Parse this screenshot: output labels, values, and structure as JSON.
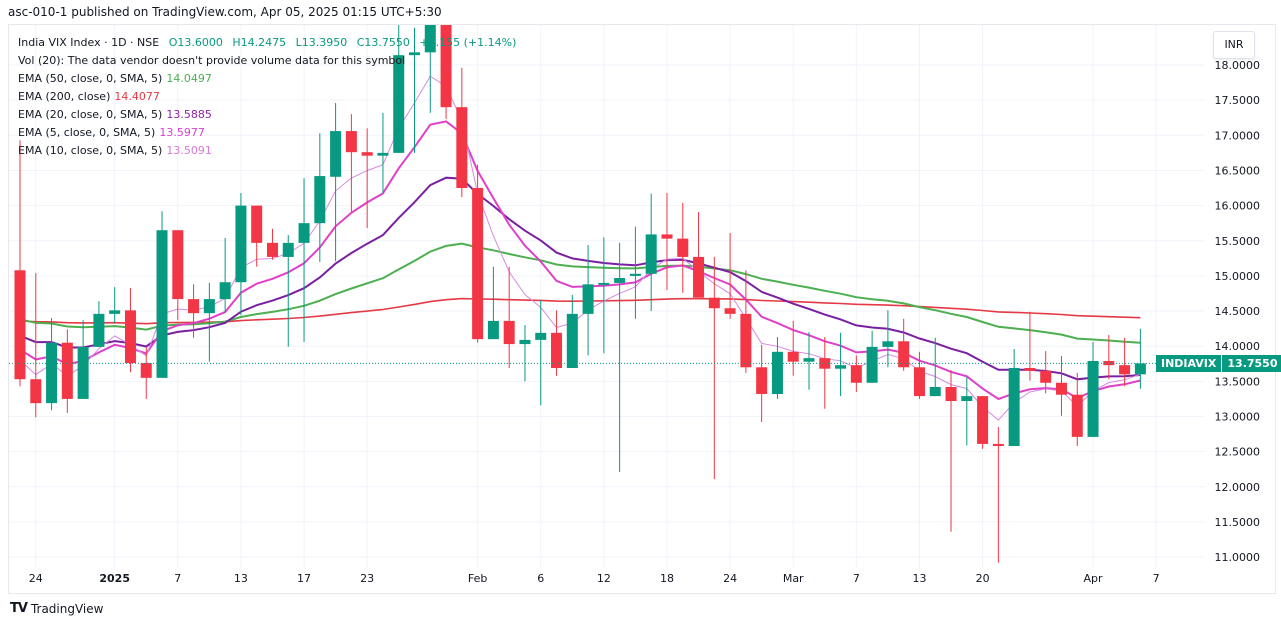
{
  "header": {
    "published": "asc-010-1 published on TradingView.com, Apr 05, 2025 01:15 UTC+5:30"
  },
  "legend": {
    "symbol": "India VIX Index · 1D · NSE",
    "open": "O13.6000",
    "high": "H14.2475",
    "low": "L13.3950",
    "close": "C13.7550",
    "change": "+0.155 (+1.14%)",
    "volume": "Vol (20): The data vendor doesn't provide volume data for this symbol",
    "emas": [
      {
        "label": "EMA (50, close, 0, SMA, 5)",
        "value": "14.0497",
        "color": "#4caf50"
      },
      {
        "label": "EMA (200, close)",
        "value": "14.4077",
        "color": "#e53945"
      },
      {
        "label": "EMA (20, close, 0, SMA, 5)",
        "value": "13.5885",
        "color": "#8e24aa"
      },
      {
        "label": "EMA (5, close, 0, SMA, 5)",
        "value": "13.5977",
        "color": "#d63fd0"
      },
      {
        "label": "EMA (10, close, 0, SMA, 5)",
        "value": "13.5091",
        "color": "#d67ad6"
      }
    ]
  },
  "currency_button": "INR",
  "price_tag": {
    "symbol": "INDIAVIX",
    "price": "13.7550"
  },
  "footer": {
    "brand": "TradingView"
  },
  "chart_data": {
    "type": "candlestick",
    "title": "India VIX Index · 1D · NSE",
    "ylim": [
      10.85,
      18.53
    ],
    "y_ticks": [
      "18.0000",
      "17.5000",
      "17.0000",
      "16.5000",
      "16.0000",
      "15.5000",
      "15.0000",
      "14.5000",
      "14.0000",
      "13.5000",
      "13.0000",
      "12.5000",
      "12.0000",
      "11.5000",
      "11.0000"
    ],
    "x_ticks": [
      {
        "label": "24",
        "index": 1
      },
      {
        "label": "2025",
        "index": 6,
        "bold": true
      },
      {
        "label": "7",
        "index": 10
      },
      {
        "label": "13",
        "index": 14
      },
      {
        "label": "17",
        "index": 18
      },
      {
        "label": "23",
        "index": 22
      },
      {
        "label": "Feb",
        "index": 29
      },
      {
        "label": "6",
        "index": 33
      },
      {
        "label": "12",
        "index": 37
      },
      {
        "label": "18",
        "index": 41
      },
      {
        "label": "24",
        "index": 45
      },
      {
        "label": "Mar",
        "index": 49
      },
      {
        "label": "7",
        "index": 53
      },
      {
        "label": "13",
        "index": 57
      },
      {
        "label": "20",
        "index": 61
      },
      {
        "label": "Apr",
        "index": 68
      },
      {
        "label": "7",
        "index": 72
      }
    ],
    "last_price": 13.755,
    "colors": {
      "up": "#089981",
      "down": "#f23645"
    },
    "ohlc": [
      [
        15.08,
        16.93,
        13.43,
        13.53
      ],
      [
        13.53,
        15.04,
        12.99,
        13.19
      ],
      [
        13.19,
        14.4,
        13.09,
        14.05
      ],
      [
        14.05,
        14.24,
        13.05,
        13.25
      ],
      [
        13.25,
        14.37,
        13.25,
        13.99
      ],
      [
        13.99,
        14.64,
        13.99,
        14.46
      ],
      [
        14.46,
        14.84,
        14.33,
        14.51
      ],
      [
        14.51,
        14.83,
        13.63,
        13.76
      ],
      [
        13.76,
        13.99,
        13.25,
        13.55
      ],
      [
        13.55,
        15.92,
        13.55,
        15.65
      ],
      [
        15.65,
        15.65,
        14.37,
        14.67
      ],
      [
        14.67,
        14.88,
        14.12,
        14.47
      ],
      [
        14.47,
        14.9,
        13.78,
        14.67
      ],
      [
        14.67,
        15.54,
        14.47,
        14.91
      ],
      [
        14.91,
        16.18,
        14.44,
        16.0
      ],
      [
        16.0,
        16.0,
        15.13,
        15.47
      ],
      [
        15.47,
        15.67,
        15.23,
        15.27
      ],
      [
        15.27,
        15.58,
        13.99,
        15.47
      ],
      [
        15.47,
        16.39,
        14.06,
        15.75
      ],
      [
        15.75,
        17.03,
        15.2,
        16.42
      ],
      [
        16.41,
        17.46,
        15.21,
        17.06
      ],
      [
        17.06,
        17.3,
        15.91,
        16.76
      ],
      [
        16.76,
        17.1,
        15.68,
        16.71
      ],
      [
        16.71,
        17.32,
        16.18,
        16.75
      ],
      [
        16.75,
        18.6,
        16.75,
        18.14
      ],
      [
        18.14,
        18.53,
        16.75,
        18.18
      ],
      [
        18.18,
        19.0,
        17.32,
        18.6
      ],
      [
        18.6,
        19.0,
        17.23,
        17.4
      ],
      [
        17.4,
        17.96,
        16.12,
        16.25
      ],
      [
        16.25,
        16.58,
        14.05,
        14.1
      ],
      [
        14.1,
        15.13,
        14.1,
        14.36
      ],
      [
        14.36,
        15.13,
        13.69,
        14.03
      ],
      [
        14.03,
        14.3,
        13.5,
        14.09
      ],
      [
        14.09,
        14.66,
        13.16,
        14.19
      ],
      [
        14.19,
        14.51,
        13.58,
        13.69
      ],
      [
        13.69,
        14.73,
        13.69,
        14.46
      ],
      [
        14.46,
        15.44,
        13.87,
        14.88
      ],
      [
        14.88,
        15.55,
        13.9,
        14.9
      ],
      [
        14.9,
        15.47,
        12.21,
        14.97
      ],
      [
        15.0,
        15.7,
        14.39,
        15.03
      ],
      [
        15.03,
        16.17,
        14.5,
        15.59
      ],
      [
        15.59,
        16.18,
        14.8,
        15.53
      ],
      [
        15.53,
        16.04,
        14.76,
        15.27
      ],
      [
        15.27,
        15.91,
        14.69,
        14.69
      ],
      [
        14.69,
        15.27,
        12.11,
        14.54
      ],
      [
        14.54,
        15.61,
        14.39,
        14.46
      ],
      [
        14.46,
        15.08,
        13.62,
        13.7
      ],
      [
        13.7,
        14.02,
        12.92,
        13.32
      ],
      [
        13.32,
        14.13,
        13.25,
        13.92
      ],
      [
        13.92,
        14.36,
        13.58,
        13.78
      ],
      [
        13.78,
        14.2,
        13.38,
        13.83
      ],
      [
        13.83,
        14.13,
        13.11,
        13.68
      ],
      [
        13.68,
        14.19,
        13.29,
        13.73
      ],
      [
        13.73,
        13.87,
        13.35,
        13.48
      ],
      [
        13.48,
        14.22,
        13.48,
        13.99
      ],
      [
        13.99,
        14.51,
        13.7,
        14.07
      ],
      [
        14.07,
        14.39,
        13.65,
        13.7
      ],
      [
        13.7,
        13.92,
        13.25,
        13.29
      ],
      [
        13.29,
        14.12,
        13.29,
        13.42
      ],
      [
        13.42,
        13.66,
        11.36,
        13.22
      ],
      [
        13.22,
        13.56,
        12.59,
        13.29
      ],
      [
        13.29,
        13.29,
        12.54,
        12.61
      ],
      [
        12.61,
        12.85,
        10.92,
        12.58
      ],
      [
        12.58,
        13.96,
        12.58,
        13.69
      ],
      [
        13.69,
        14.49,
        13.51,
        13.65
      ],
      [
        13.65,
        13.93,
        13.33,
        13.48
      ],
      [
        13.48,
        13.86,
        13.01,
        13.31
      ],
      [
        13.31,
        13.62,
        12.58,
        12.71
      ],
      [
        12.71,
        14.06,
        12.71,
        13.79
      ],
      [
        13.79,
        14.16,
        13.53,
        13.73
      ],
      [
        13.73,
        14.12,
        13.43,
        13.6
      ],
      [
        13.6,
        14.2475,
        13.395,
        13.755
      ]
    ],
    "ema_series": [
      {
        "name": "EMA 200",
        "period": 200,
        "seed": 14.36,
        "color": "#e53945"
      },
      {
        "name": "EMA 50",
        "period": 50,
        "seed": 14.38,
        "color": "#4caf50"
      },
      {
        "name": "EMA 20",
        "period": 20,
        "seed": 14.15,
        "color": "#7b1fa2"
      },
      {
        "name": "EMA 10",
        "period": 10,
        "seed": 13.95,
        "color": "#e040c8"
      },
      {
        "name": "EMA 5",
        "period": 5,
        "seed": 13.8,
        "color": "#d88ae0"
      }
    ]
  }
}
